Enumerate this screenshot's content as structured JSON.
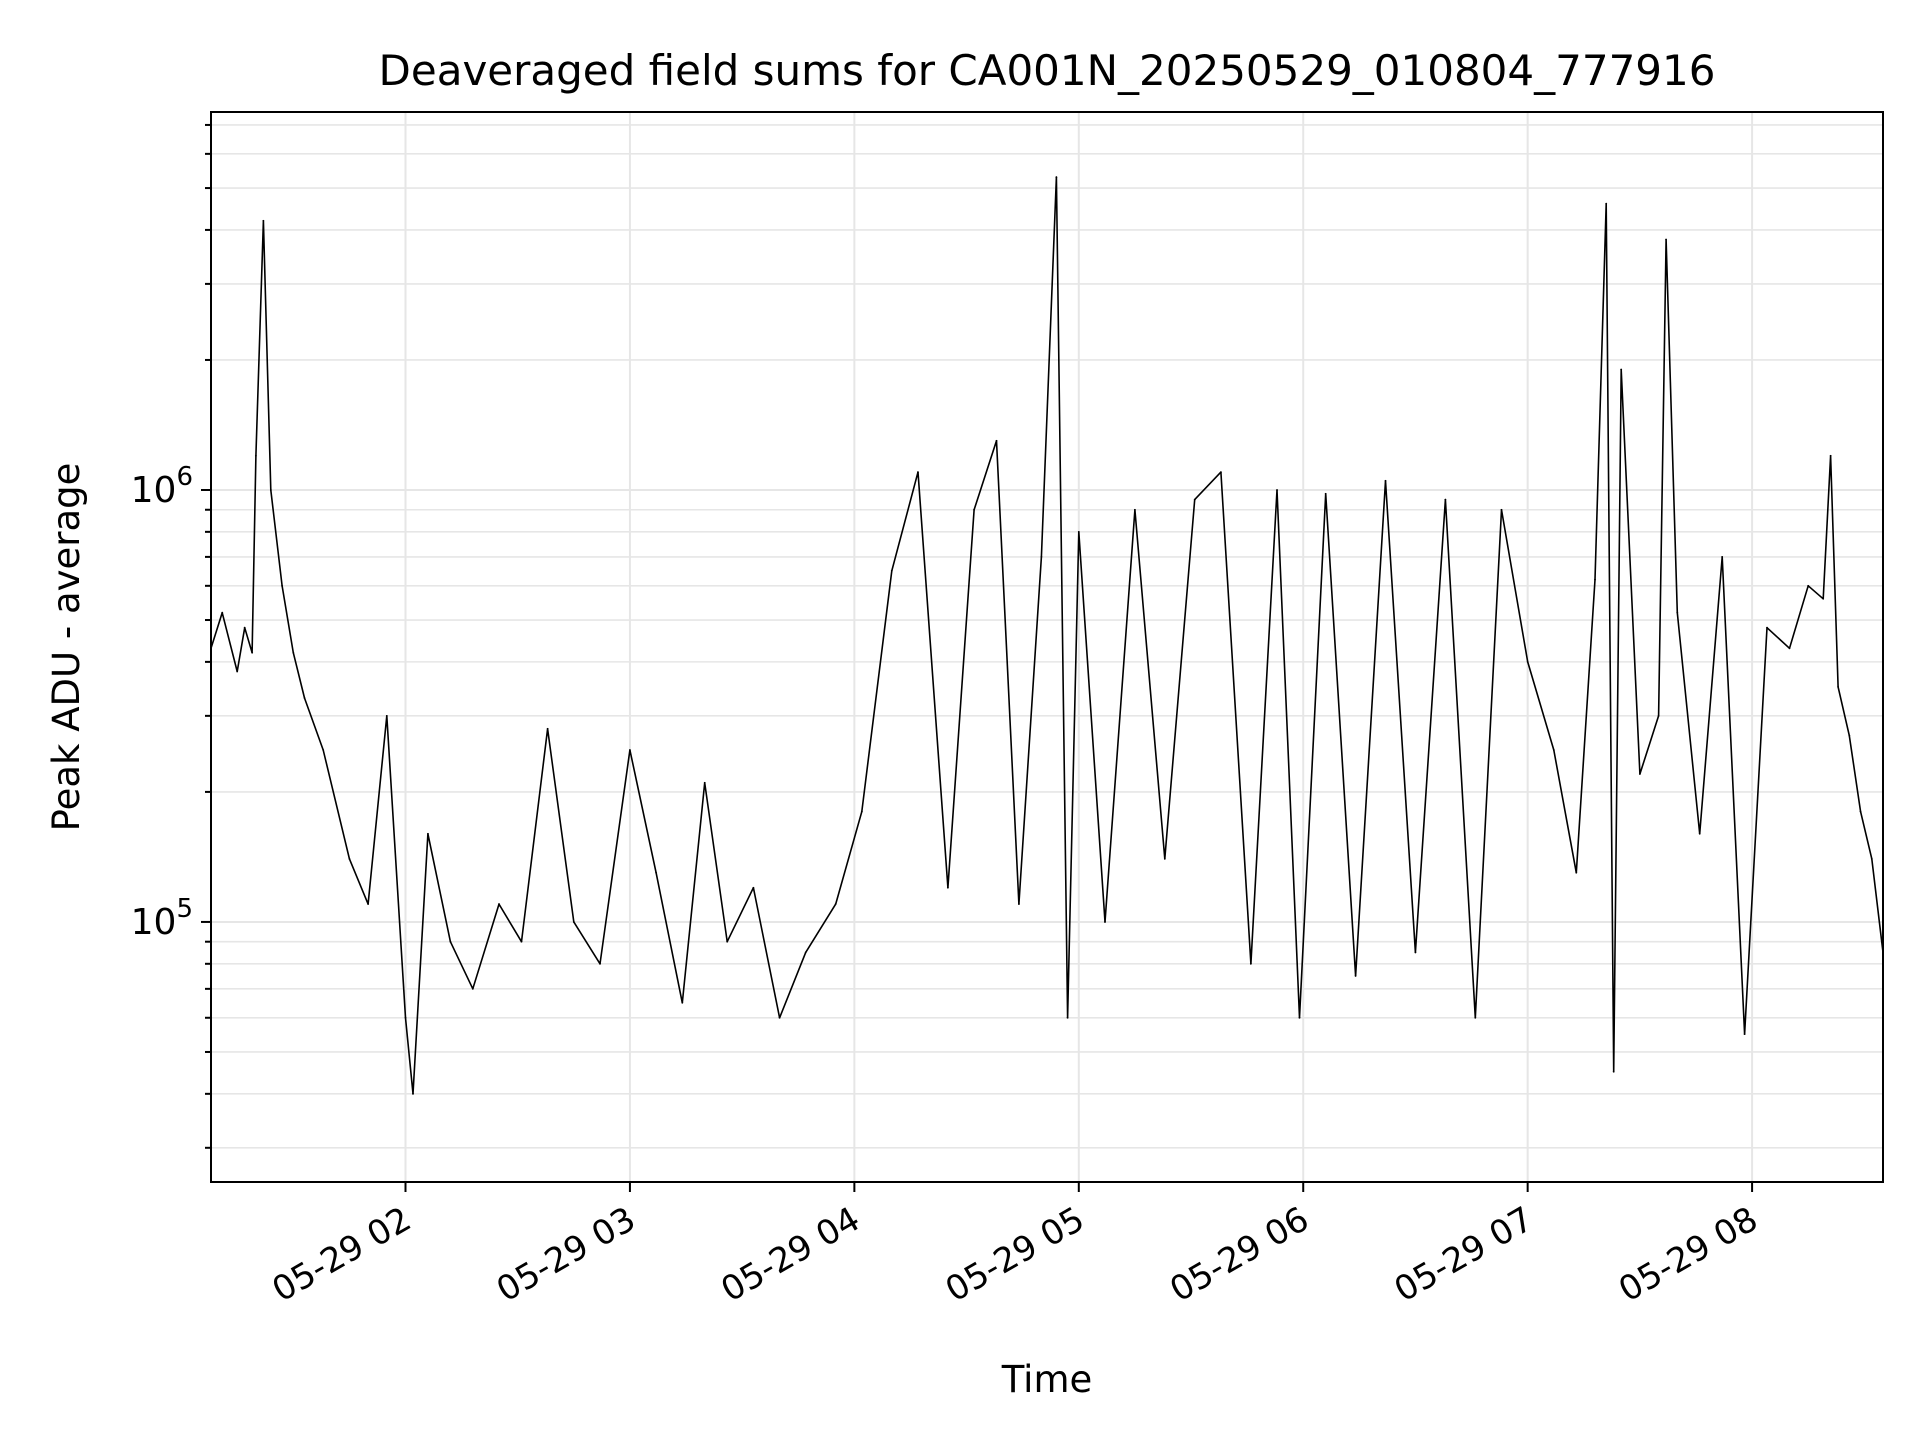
{
  "chart_data": {
    "type": "line",
    "title": "Deaveraged field sums for CA001N_20250529_010804_777916",
    "xlabel": "Time",
    "ylabel": "Peak ADU - average",
    "x_scale": "time",
    "y_scale": "log",
    "xlim": [
      "2025-05-29 01:08",
      "2025-05-29 08:35"
    ],
    "ylim": [
      25000,
      7500000
    ],
    "x_ticks": [
      "05-29 02",
      "05-29 03",
      "05-29 04",
      "05-29 05",
      "05-29 06",
      "05-29 07",
      "05-29 08"
    ],
    "y_ticks": [
      {
        "value": 100000,
        "base": "10",
        "exp": "5"
      },
      {
        "value": 1000000,
        "base": "10",
        "exp": "6"
      }
    ],
    "grid": true,
    "line_color": "#000000",
    "grid_color": "#e6e6e6",
    "series": [
      {
        "x": [
          "2025-05-29 01:08",
          "2025-05-29 01:11",
          "2025-05-29 01:15",
          "2025-05-29 01:17",
          "2025-05-29 01:19",
          "2025-05-29 01:20",
          "2025-05-29 01:22",
          "2025-05-29 01:24",
          "2025-05-29 01:27",
          "2025-05-29 01:30",
          "2025-05-29 01:33",
          "2025-05-29 01:38",
          "2025-05-29 01:45",
          "2025-05-29 01:50",
          "2025-05-29 01:55",
          "2025-05-29 02:00",
          "2025-05-29 02:02",
          "2025-05-29 02:06",
          "2025-05-29 02:12",
          "2025-05-29 02:18",
          "2025-05-29 02:25",
          "2025-05-29 02:31",
          "2025-05-29 02:38",
          "2025-05-29 02:45",
          "2025-05-29 02:52",
          "2025-05-29 03:00",
          "2025-05-29 03:07",
          "2025-05-29 03:14",
          "2025-05-29 03:20",
          "2025-05-29 03:26",
          "2025-05-29 03:33",
          "2025-05-29 03:40",
          "2025-05-29 03:47",
          "2025-05-29 03:55",
          "2025-05-29 04:02",
          "2025-05-29 04:10",
          "2025-05-29 04:17",
          "2025-05-29 04:25",
          "2025-05-29 04:32",
          "2025-05-29 04:38",
          "2025-05-29 04:44",
          "2025-05-29 04:50",
          "2025-05-29 04:54",
          "2025-05-29 04:57",
          "2025-05-29 05:00",
          "2025-05-29 05:07",
          "2025-05-29 05:15",
          "2025-05-29 05:23",
          "2025-05-29 05:31",
          "2025-05-29 05:38",
          "2025-05-29 05:46",
          "2025-05-29 05:53",
          "2025-05-29 05:59",
          "2025-05-29 06:06",
          "2025-05-29 06:14",
          "2025-05-29 06:22",
          "2025-05-29 06:30",
          "2025-05-29 06:38",
          "2025-05-29 06:46",
          "2025-05-29 06:53",
          "2025-05-29 07:00",
          "2025-05-29 07:07",
          "2025-05-29 07:13",
          "2025-05-29 07:18",
          "2025-05-29 07:21",
          "2025-05-29 07:23",
          "2025-05-29 07:25",
          "2025-05-29 07:30",
          "2025-05-29 07:35",
          "2025-05-29 07:37",
          "2025-05-29 07:40",
          "2025-05-29 07:46",
          "2025-05-29 07:52",
          "2025-05-29 07:58",
          "2025-05-29 08:04",
          "2025-05-29 08:10",
          "2025-05-29 08:15",
          "2025-05-29 08:19",
          "2025-05-29 08:21",
          "2025-05-29 08:23",
          "2025-05-29 08:26",
          "2025-05-29 08:29",
          "2025-05-29 08:32",
          "2025-05-29 08:35"
        ],
        "y": [
          430000,
          520000,
          380000,
          480000,
          420000,
          1200000,
          4200000,
          1000000,
          600000,
          420000,
          330000,
          250000,
          140000,
          110000,
          300000,
          60000,
          40000,
          160000,
          90000,
          70000,
          110000,
          90000,
          280000,
          100000,
          80000,
          250000,
          130000,
          65000,
          210000,
          90000,
          120000,
          60000,
          85000,
          110000,
          180000,
          650000,
          1100000,
          120000,
          900000,
          1300000,
          110000,
          700000,
          5300000,
          60000,
          800000,
          100000,
          900000,
          140000,
          950000,
          1100000,
          80000,
          1000000,
          60000,
          980000,
          75000,
          1050000,
          85000,
          950000,
          60000,
          900000,
          400000,
          250000,
          130000,
          620000,
          4600000,
          45000,
          1900000,
          220000,
          300000,
          3800000,
          520000,
          160000,
          700000,
          55000,
          480000,
          430000,
          600000,
          560000,
          1200000,
          350000,
          270000,
          180000,
          140000,
          85000
        ]
      }
    ]
  }
}
